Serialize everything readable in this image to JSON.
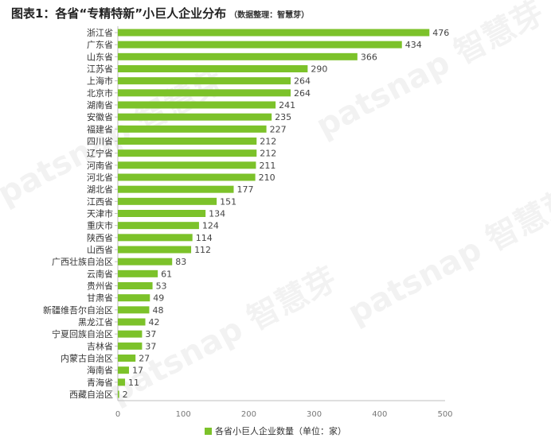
{
  "header": {
    "title": "图表1：各省“专精特新”小巨人企业分布",
    "note": "（数据整理：智慧芽）"
  },
  "watermark": {
    "text": "patsnap 智慧芽"
  },
  "colors": {
    "bar": "#7cc22a",
    "axis": "#bfbfbf"
  },
  "chart_data": {
    "type": "bar",
    "orientation": "horizontal",
    "categories": [
      "浙江省",
      "广东省",
      "山东省",
      "江苏省",
      "上海市",
      "北京市",
      "湖南省",
      "安徽省",
      "福建省",
      "四川省",
      "辽宁省",
      "河南省",
      "河北省",
      "湖北省",
      "江西省",
      "天津市",
      "重庆市",
      "陕西省",
      "山西省",
      "广西壮族自治区",
      "云南省",
      "贵州省",
      "甘肃省",
      "新疆维吾尔自治区",
      "黑龙江省",
      "宁夏回族自治区",
      "吉林省",
      "内蒙古自治区",
      "海南省",
      "青海省",
      "西藏自治区"
    ],
    "values": [
      476,
      434,
      366,
      290,
      264,
      264,
      241,
      235,
      227,
      212,
      212,
      211,
      210,
      177,
      151,
      134,
      124,
      114,
      112,
      83,
      61,
      53,
      49,
      48,
      42,
      37,
      37,
      27,
      17,
      11,
      2
    ],
    "xlim": [
      0,
      500
    ],
    "xticks": [
      "0",
      "100",
      "200",
      "300",
      "400",
      "500"
    ],
    "legend": "各省小巨人企业数量（单位：家）",
    "legend_position": "bottom"
  }
}
